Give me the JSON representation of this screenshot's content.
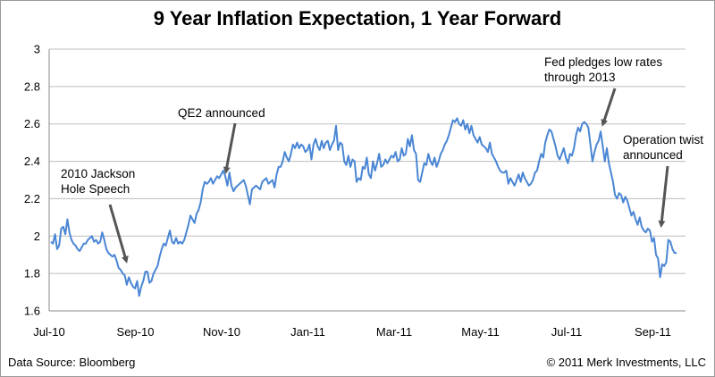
{
  "chart_data": {
    "type": "line",
    "title": "9 Year Inflation Expectation, 1 Year Forward",
    "xlabel": "",
    "ylabel": "",
    "ylim": [
      1.6,
      3.0
    ],
    "yticks": [
      "1.6",
      "1.8",
      "2",
      "2.2",
      "2.4",
      "2.6",
      "2.8",
      "3"
    ],
    "xticks": [
      "Jul-10",
      "Sep-10",
      "Nov-10",
      "Jan-11",
      "Mar-11",
      "May-11",
      "Jul-11",
      "Sep-11"
    ],
    "grid": true,
    "legend": "none",
    "line_color": "#4a86d4",
    "series": [
      {
        "values": [
          1.97,
          1.96,
          2.01,
          1.93,
          1.95,
          2.04,
          2.05,
          2.01,
          2.09,
          2.02,
          1.98,
          1.96,
          1.95,
          1.93,
          1.92,
          1.94,
          1.96,
          1.96,
          1.98,
          1.99,
          2.0,
          1.97,
          1.98,
          1.96,
          1.97,
          2.02,
          1.98,
          1.93,
          1.91,
          1.9,
          1.89,
          1.9,
          1.87,
          1.83,
          1.82,
          1.8,
          1.79,
          1.74,
          1.78,
          1.75,
          1.73,
          1.72,
          1.76,
          1.68,
          1.73,
          1.76,
          1.81,
          1.81,
          1.75,
          1.76,
          1.8,
          1.82,
          1.84,
          1.89,
          1.93,
          1.96,
          1.95,
          1.99,
          2.03,
          1.97,
          1.96,
          1.99,
          1.96,
          1.97,
          1.96,
          1.98,
          2.02,
          2.06,
          2.11,
          2.09,
          2.07,
          2.12,
          2.14,
          2.18,
          2.25,
          2.29,
          2.28,
          2.29,
          2.31,
          2.28,
          2.3,
          2.32,
          2.31,
          2.33,
          2.35,
          2.32,
          2.27,
          2.34,
          2.27,
          2.24,
          2.26,
          2.27,
          2.28,
          2.29,
          2.3,
          2.27,
          2.22,
          2.17,
          2.25,
          2.26,
          2.27,
          2.26,
          2.25,
          2.29,
          2.3,
          2.31,
          2.28,
          2.29,
          2.3,
          2.26,
          2.33,
          2.37,
          2.37,
          2.4,
          2.45,
          2.42,
          2.4,
          2.44,
          2.49,
          2.47,
          2.5,
          2.47,
          2.49,
          2.48,
          2.45,
          2.46,
          2.49,
          2.41,
          2.49,
          2.52,
          2.48,
          2.46,
          2.51,
          2.47,
          2.5,
          2.51,
          2.46,
          2.49,
          2.51,
          2.59,
          2.46,
          2.5,
          2.49,
          2.4,
          2.38,
          2.43,
          2.37,
          2.41,
          2.4,
          2.29,
          2.31,
          2.3,
          2.37,
          2.36,
          2.42,
          2.33,
          2.31,
          2.4,
          2.35,
          2.39,
          2.44,
          2.37,
          2.38,
          2.41,
          2.39,
          2.41,
          2.43,
          2.42,
          2.45,
          2.4,
          2.41,
          2.47,
          2.43,
          2.44,
          2.52,
          2.48,
          2.54,
          2.46,
          2.44,
          2.3,
          2.29,
          2.34,
          2.39,
          2.38,
          2.44,
          2.4,
          2.38,
          2.42,
          2.37,
          2.4,
          2.44,
          2.46,
          2.49,
          2.51,
          2.54,
          2.58,
          2.62,
          2.61,
          2.63,
          2.6,
          2.59,
          2.62,
          2.57,
          2.6,
          2.55,
          2.59,
          2.54,
          2.52,
          2.5,
          2.53,
          2.49,
          2.48,
          2.47,
          2.45,
          2.5,
          2.44,
          2.42,
          2.4,
          2.37,
          2.35,
          2.34,
          2.34,
          2.35,
          2.28,
          2.31,
          2.29,
          2.27,
          2.3,
          2.33,
          2.29,
          2.34,
          2.31,
          2.29,
          2.27,
          2.28,
          2.3,
          2.34,
          2.35,
          2.4,
          2.44,
          2.42,
          2.5,
          2.54,
          2.57,
          2.56,
          2.52,
          2.48,
          2.43,
          2.41,
          2.44,
          2.47,
          2.42,
          2.39,
          2.44,
          2.43,
          2.47,
          2.54,
          2.58,
          2.56,
          2.6,
          2.61,
          2.6,
          2.58,
          2.49,
          2.4,
          2.45,
          2.49,
          2.51,
          2.56,
          2.48,
          2.4,
          2.47,
          2.39,
          2.34,
          2.29,
          2.22,
          2.2,
          2.23,
          2.22,
          2.18,
          2.21,
          2.19,
          2.15,
          2.11,
          2.13,
          2.09,
          2.06,
          2.1,
          2.05,
          2.03,
          2.02,
          2.04,
          2.03,
          1.97,
          1.99,
          1.9,
          1.88,
          1.78,
          1.85,
          1.84,
          1.86,
          1.98,
          1.97,
          1.93,
          1.91,
          1.91
        ]
      }
    ],
    "annotations": [
      {
        "lines": [
          "2010 Jackson",
          "Hole Speech"
        ]
      },
      {
        "lines": [
          "QE2 announced"
        ]
      },
      {
        "lines": [
          "Fed pledges low rates",
          "through 2013"
        ]
      },
      {
        "lines": [
          "Operation twist",
          "announced"
        ]
      }
    ]
  },
  "footer": {
    "source": "Data Source: Bloomberg",
    "copyright": "© 2011 Merk Investments, LLC"
  }
}
